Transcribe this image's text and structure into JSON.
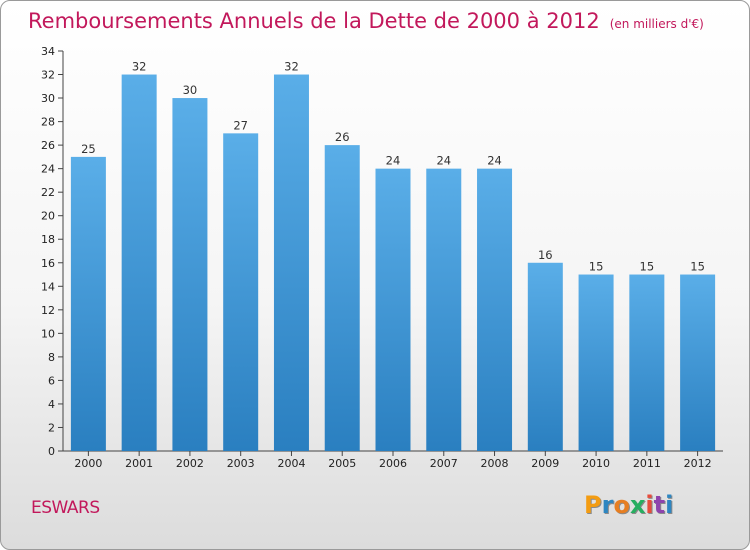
{
  "title": "Remboursements Annuels de la Dette de 2000 à 2012",
  "subtitle": "(en milliers d'€)",
  "commune": "ESWARS",
  "logo": {
    "letters": [
      "P",
      "r",
      "o",
      "x",
      "i",
      "t",
      "i"
    ],
    "colors": [
      "#f39c12",
      "#2e86c1",
      "#e67e22",
      "#27ae60",
      "#e74c3c",
      "#8e44ad",
      "#2e86c1"
    ]
  },
  "colors": {
    "bar_top": "#5aaee8",
    "bar_bottom": "#2a7fc0",
    "accent": "#c2185b"
  },
  "chart_data": {
    "type": "bar",
    "categories": [
      "2000",
      "2001",
      "2002",
      "2003",
      "2004",
      "2005",
      "2006",
      "2007",
      "2008",
      "2009",
      "2010",
      "2011",
      "2012"
    ],
    "values": [
      25,
      32,
      30,
      27,
      32,
      26,
      24,
      24,
      24,
      16,
      15,
      15,
      15
    ],
    "ylim": [
      0,
      34
    ],
    "yticks": [
      0,
      2,
      4,
      6,
      8,
      10,
      12,
      14,
      16,
      18,
      20,
      22,
      24,
      26,
      28,
      30,
      32,
      34
    ],
    "grid": false,
    "legend": "none"
  }
}
